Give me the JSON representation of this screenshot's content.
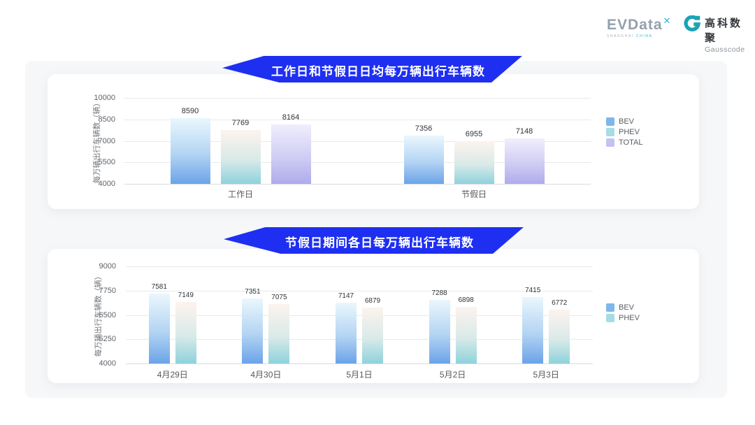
{
  "brand": {
    "evdata": {
      "name": "EVData",
      "sup": "✕",
      "tagline_left": "SHANGHAI",
      "tagline_right": "CHINA"
    },
    "gausscode": {
      "cn": "高科数聚",
      "en": "Gausscode"
    }
  },
  "colors": {
    "banner": "#1e2ff2",
    "panel_bg": "#f6f7f9",
    "card_bg": "#ffffff",
    "grid_line": "#e8e9ed",
    "series": [
      {
        "name": "BEV",
        "gradient_top": "#eaf7fd",
        "gradient_mid": "#b3d4f3",
        "gradient_bottom": "#6ba3e8",
        "legend": "#7db7eb"
      },
      {
        "name": "PHEV",
        "gradient_top": "#fdf3ee",
        "gradient_mid": "#d9eae8",
        "gradient_bottom": "#8ed2dc",
        "legend": "#a6dce4"
      },
      {
        "name": "TOTAL",
        "gradient_top": "#f0eefc",
        "gradient_mid": "#d0cdf4",
        "gradient_bottom": "#afabeb",
        "legend": "#c5c1f2"
      }
    ]
  },
  "chart_data": [
    {
      "type": "bar",
      "title": "工作日和节假日日均每万辆出行车辆数",
      "categories": [
        "工作日",
        "节假日"
      ],
      "series": [
        {
          "name": "BEV",
          "values": [
            8590,
            7356
          ]
        },
        {
          "name": "PHEV",
          "values": [
            7769,
            6955
          ]
        },
        {
          "name": "TOTAL",
          "values": [
            8164,
            7148
          ]
        }
      ],
      "xlabel": "",
      "ylabel": "每万辆出行车辆数（辆）",
      "ylim": [
        4000,
        10000
      ],
      "yticks": [
        4000,
        5500,
        7000,
        8500,
        10000
      ],
      "grid": true,
      "legend_position": "right"
    },
    {
      "type": "bar",
      "title": "节假日期间各日每万辆出行车辆数",
      "categories": [
        "4月29日",
        "4月30日",
        "5月1日",
        "5月2日",
        "5月3日"
      ],
      "series": [
        {
          "name": "BEV",
          "values": [
            7581,
            7351,
            7147,
            7288,
            7415
          ]
        },
        {
          "name": "PHEV",
          "values": [
            7149,
            7075,
            6879,
            6898,
            6772
          ]
        }
      ],
      "xlabel": "",
      "ylabel": "每万辆出行车辆数（辆）",
      "ylim": [
        4000,
        9000
      ],
      "yticks": [
        4000,
        5250,
        6500,
        7750,
        9000
      ],
      "grid": true,
      "legend_position": "right"
    }
  ]
}
